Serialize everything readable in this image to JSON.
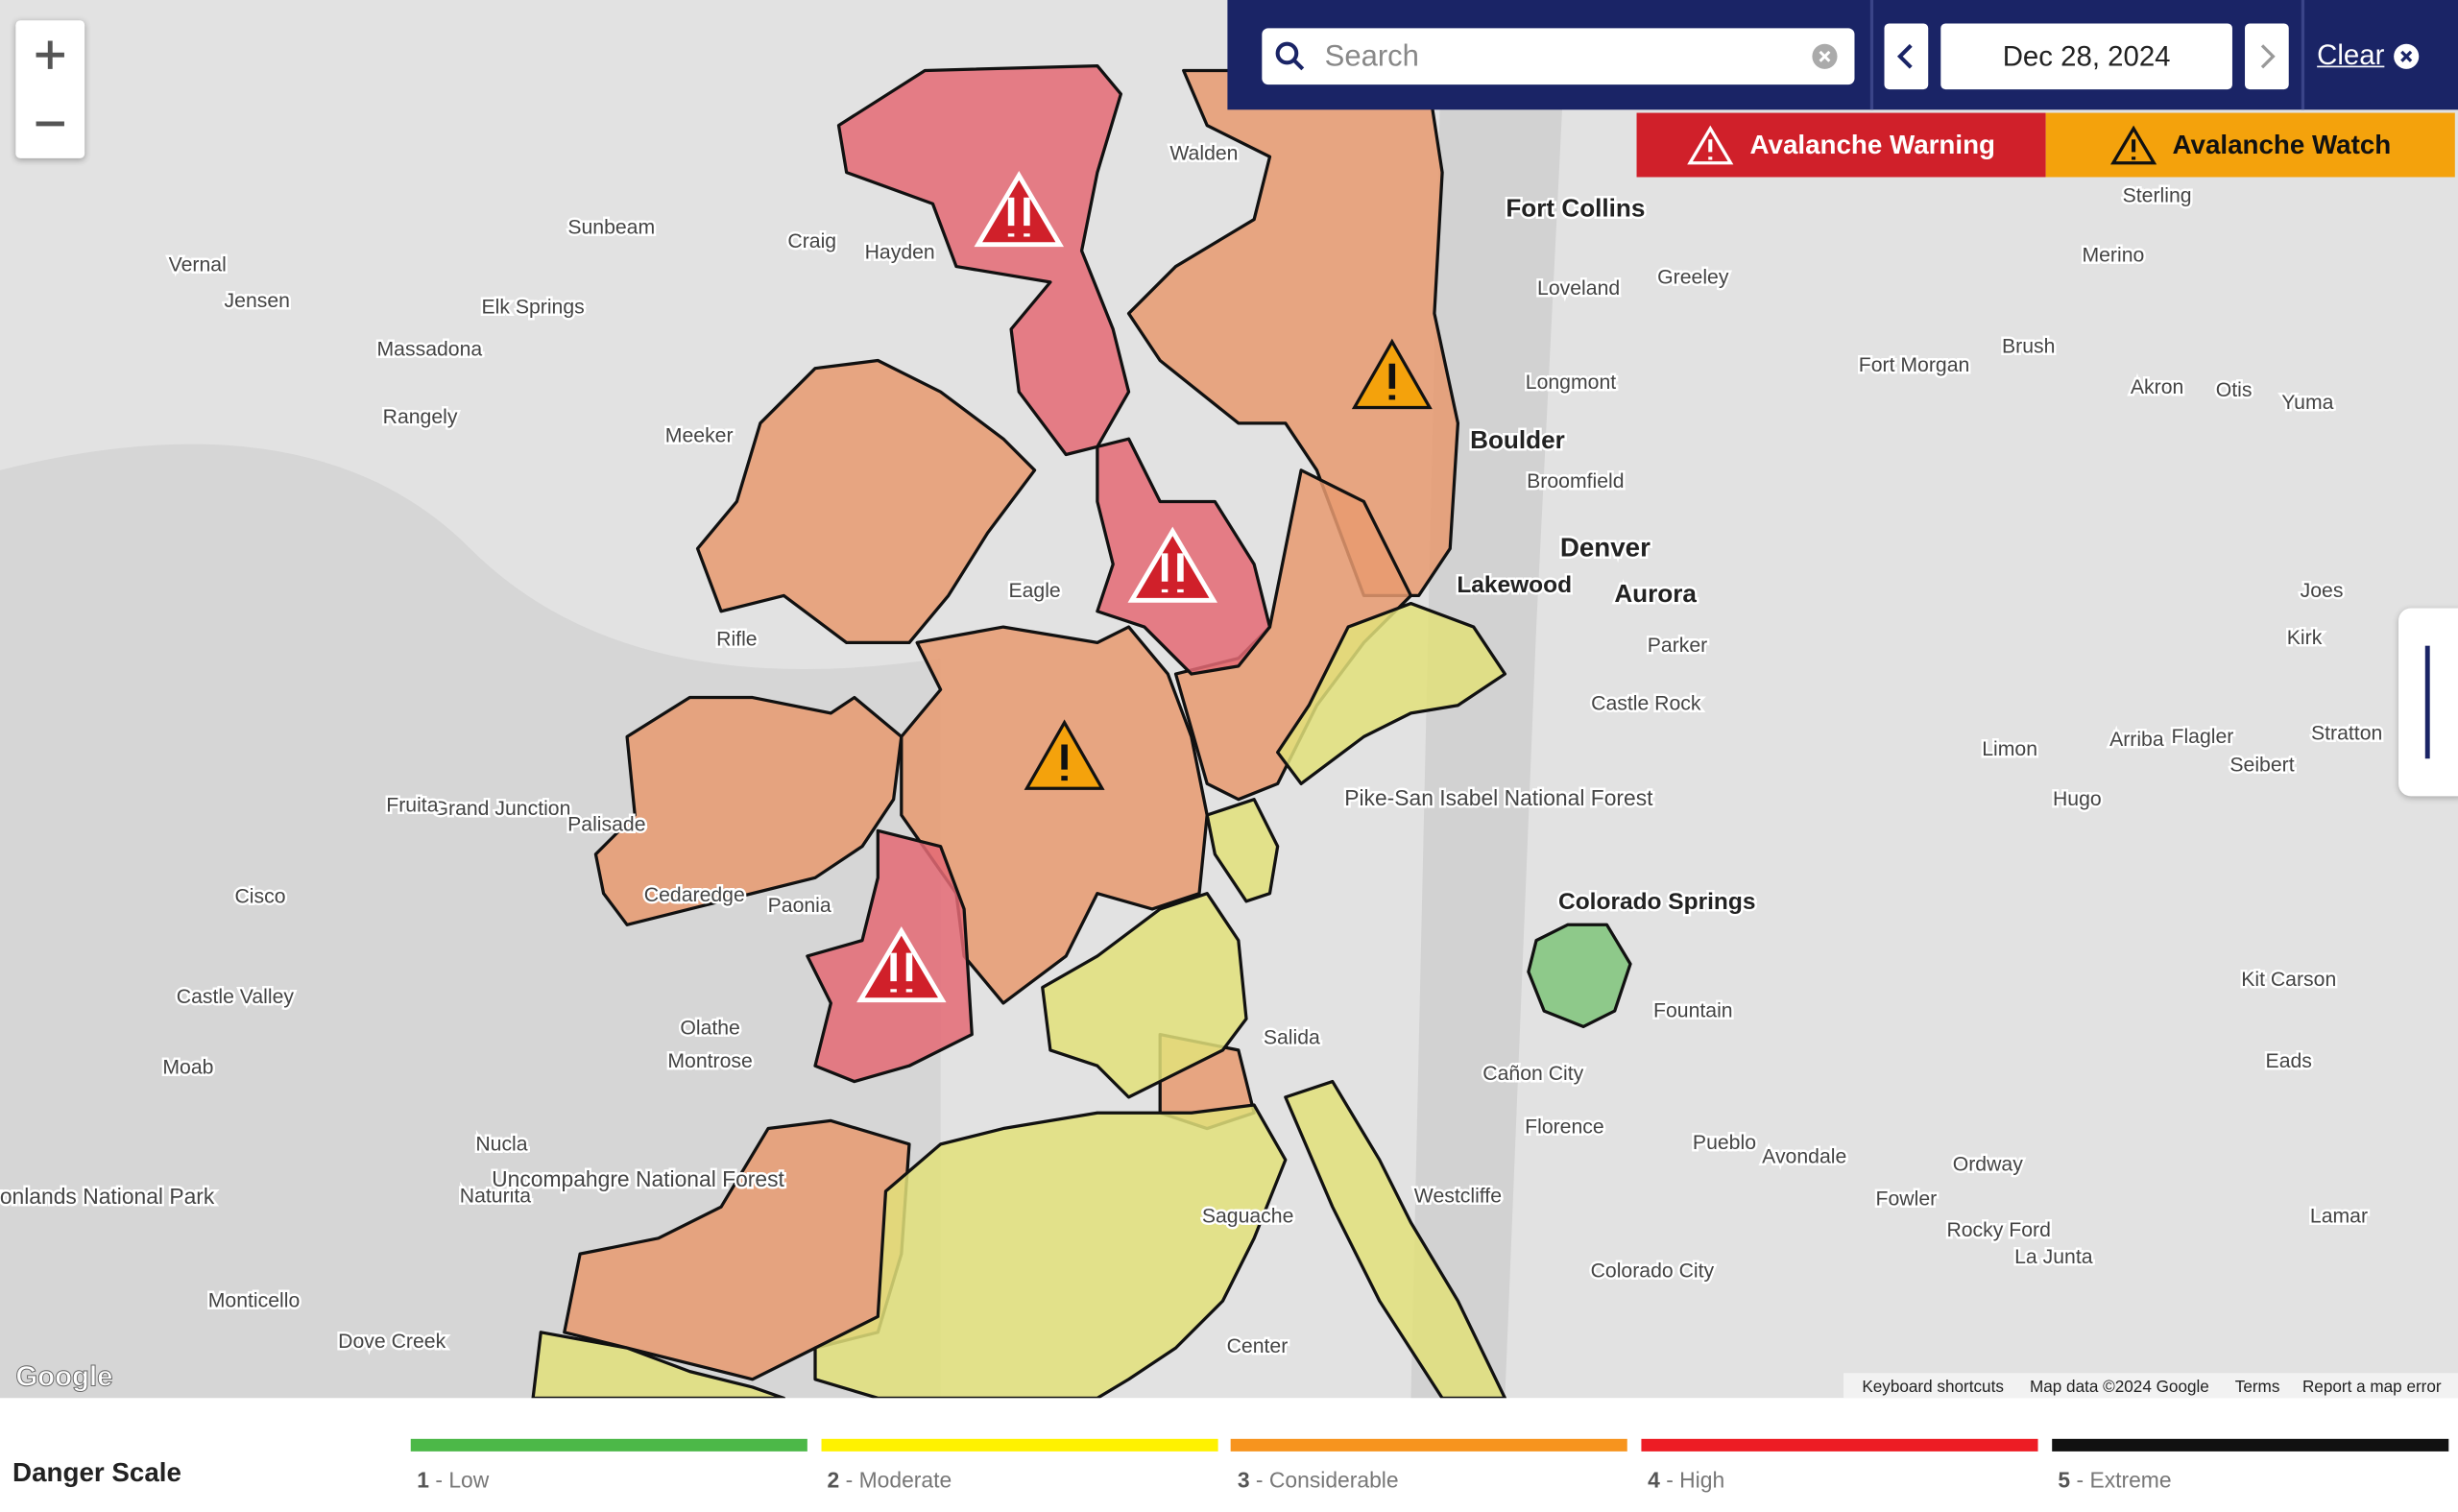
{
  "search": {
    "placeholder": "Search"
  },
  "date_picker": {
    "date": "Dec 28, 2024",
    "clear": "Clear"
  },
  "alerts": [
    {
      "label": "Avalanche Warning",
      "color": "#d0202a"
    },
    {
      "label": "Avalanche Watch",
      "color": "#f4a20c"
    }
  ],
  "map": {
    "labels": [
      "Fort Collins",
      "Boulder",
      "Denver",
      "Aurora",
      "Lakewood",
      "Colorado Springs",
      "Pueblo",
      "Loveland",
      "Greeley",
      "Longmont",
      "Broomfield",
      "Castle Rock",
      "Parker",
      "Walden",
      "Craig",
      "Hayden",
      "Meeker",
      "Rangely",
      "Rifle",
      "Eagle",
      "Salida",
      "Montrose",
      "Olathe",
      "Nucla",
      "Naturita",
      "Moab",
      "Monticello",
      "Dove Creek",
      "Sterling",
      "Brush",
      "Fort Morgan",
      "Limon",
      "Hugo",
      "Kit Carson",
      "Eads",
      "La Junta",
      "Lamar",
      "Rocky Ford",
      "Cañon City",
      "Florence",
      "Westcliffe",
      "Saguache",
      "Center",
      "Fowler",
      "Ordway",
      "Avondale",
      "Fountain",
      "Colorado City",
      "Grand Junction",
      "Fruita",
      "Palisade",
      "Paonia",
      "Cedaredge",
      "Sunbeam",
      "Elk Springs",
      "Massadona",
      "Vernal",
      "Jensen",
      "Cisco",
      "Castle Valley",
      "Akron",
      "Otis",
      "Yuma",
      "Merino",
      "Seibert",
      "Stratton",
      "Flagler",
      "Arriba",
      "Kirk",
      "Joes",
      "Pike-San Isabel National Forest",
      "Uncompahgre National Forest",
      "Canyonlands National Park"
    ],
    "logo": "Google",
    "attribution": [
      "Keyboard shortcuts",
      "Map data ©2024 Google",
      "Terms",
      "Report a map error"
    ]
  },
  "danger_scale": {
    "title": "Danger Scale",
    "levels": [
      {
        "level": 1,
        "label": "- Low",
        "color": "#4cb848"
      },
      {
        "level": 2,
        "label": "- Moderate",
        "color": "#fff200"
      },
      {
        "level": 3,
        "label": "- Considerable",
        "color": "#f7941e"
      },
      {
        "level": 4,
        "label": "- High",
        "color": "#ed1c24"
      },
      {
        "level": 5,
        "label": "- Extreme",
        "color": "#111111"
      }
    ]
  }
}
